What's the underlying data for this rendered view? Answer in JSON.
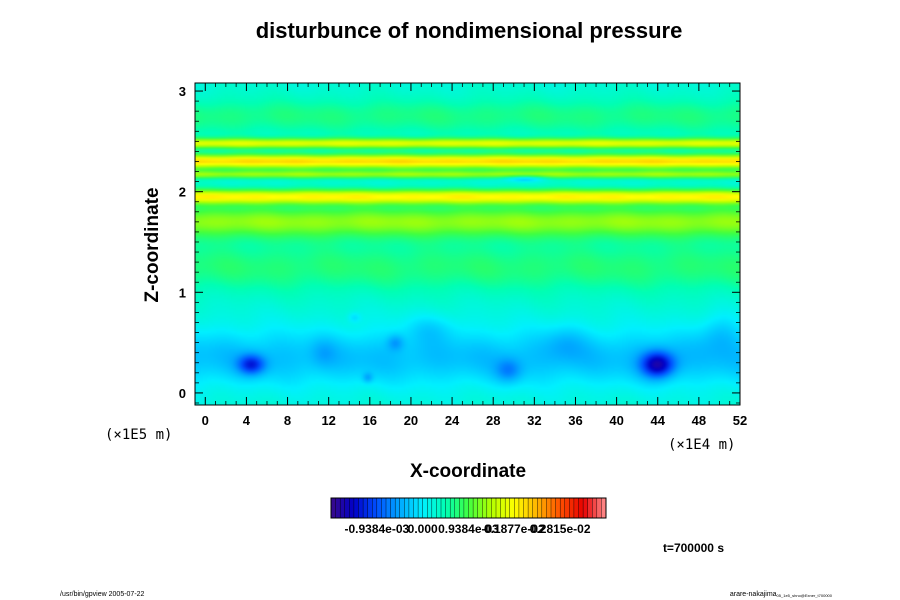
{
  "chart_data": {
    "type": "heatmap",
    "title": "disturbunce of nondimensional pressure",
    "xlabel": "X-coordinate",
    "ylabel": "Z-coordinate",
    "x_scale_label": "(×1E4 m)",
    "y_scale_label": "(×1E5 m)",
    "xlim": [
      -1,
      52
    ],
    "ylim": [
      -0.12,
      3.08
    ],
    "xticks": [
      "0",
      "4",
      "8",
      "12",
      "16",
      "20",
      "24",
      "28",
      "32",
      "36",
      "40",
      "44",
      "48",
      "52"
    ],
    "yticks": [
      "0",
      "1",
      "2",
      "3"
    ],
    "colorbar": {
      "min": -0.0018768,
      "max": 0.0037536,
      "labels": [
        "-0.9384e-03",
        "0.000",
        "0.9384e-03",
        "0.1877e-02",
        "0.2815e-02"
      ],
      "colors": [
        "#3a0a8a",
        "#0000c8",
        "#0050ff",
        "#00a8ff",
        "#00f0ff",
        "#00ffb4",
        "#40ff40",
        "#b4ff00",
        "#ffff00",
        "#ffb400",
        "#ff5000",
        "#e80000",
        "#ff9090"
      ]
    },
    "background_level": 0.00025,
    "features": [
      {
        "type": "band",
        "z_center": 2.3,
        "z_width": 0.07,
        "value": 0.00185
      },
      {
        "type": "band",
        "z_center": 1.95,
        "z_width": 0.07,
        "value": 0.0016
      },
      {
        "type": "band",
        "z_center": 2.48,
        "z_width": 0.05,
        "value": 0.0014
      },
      {
        "type": "band",
        "z_center": 2.17,
        "z_width": 0.04,
        "value": 0.001
      },
      {
        "type": "band",
        "z_center": 1.7,
        "z_width": 0.16,
        "value": 0.001
      },
      {
        "type": "band",
        "z_center": 1.25,
        "z_width": 0.25,
        "value": 0.00045
      },
      {
        "type": "band",
        "z_center": 0.35,
        "z_width": 0.3,
        "value": -0.00055
      },
      {
        "type": "band",
        "z_center": 2.75,
        "z_width": 0.18,
        "value": 0.0004
      },
      {
        "type": "blob",
        "x": 4.5,
        "z": 0.28,
        "sx": 1.3,
        "sz": 0.1,
        "value": -0.001
      },
      {
        "type": "blob",
        "x": 44.0,
        "z": 0.28,
        "sx": 1.6,
        "sz": 0.13,
        "value": -0.0014
      },
      {
        "type": "blob",
        "x": 29.5,
        "z": 0.22,
        "sx": 1.3,
        "sz": 0.12,
        "value": -0.0005
      },
      {
        "type": "blob",
        "x": 18.5,
        "z": 0.5,
        "sx": 0.8,
        "sz": 0.08,
        "value": -0.0004
      },
      {
        "type": "blob",
        "x": 15.8,
        "z": 0.15,
        "sx": 0.5,
        "sz": 0.05,
        "value": -0.0004
      },
      {
        "type": "blob",
        "x": 14.5,
        "z": 0.75,
        "sx": 0.6,
        "sz": 0.05,
        "value": -0.0003
      },
      {
        "type": "blob",
        "x": 11.5,
        "z": 0.4,
        "sx": 1.2,
        "sz": 0.14,
        "value": -0.0002
      },
      {
        "type": "blob",
        "x": 22.0,
        "z": 0.65,
        "sx": 2.5,
        "sz": 0.15,
        "value": -0.00025
      },
      {
        "type": "blob",
        "x": 35.0,
        "z": 0.5,
        "sx": 2.0,
        "sz": 0.18,
        "value": -0.00025
      },
      {
        "type": "blob",
        "x": 50.0,
        "z": 0.6,
        "sx": 2.0,
        "sz": 0.2,
        "value": -0.0003
      },
      {
        "type": "blob",
        "x": 31.0,
        "z": 2.13,
        "sx": 2.0,
        "sz": 0.03,
        "value": -0.0007
      }
    ]
  },
  "time_label": "t=700000 s",
  "footer": {
    "left": "/usr/bin/gpview 2005-07-22",
    "right": "arare-nakajima",
    "right_sub": "05_1e5_shno@Exner_t700000"
  }
}
